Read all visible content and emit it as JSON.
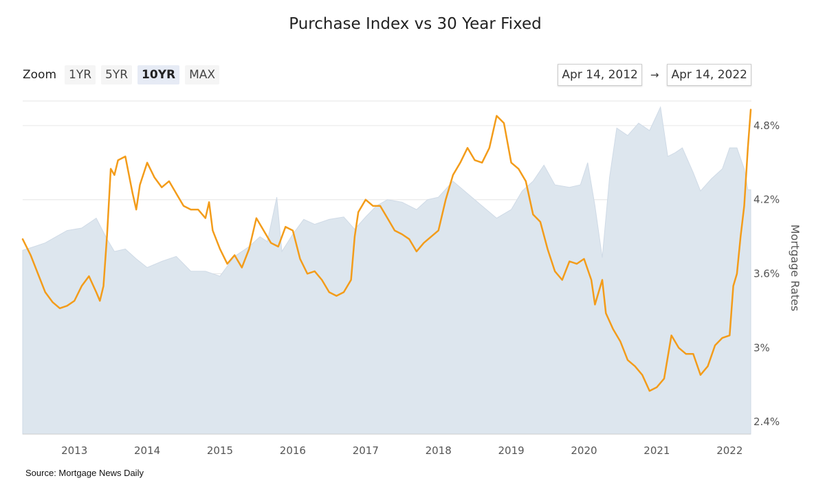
{
  "chart_data": {
    "type": "line",
    "title": "Purchase Index vs 30 Year Fixed",
    "ylabel": "Mortgage Rates",
    "xlabel": "",
    "x_range": [
      2012.29,
      2022.29
    ],
    "ylim": [
      2.3,
      5.0
    ],
    "y_ticks": [
      {
        "value": 2.4,
        "label": "2.4%"
      },
      {
        "value": 3.0,
        "label": "3%"
      },
      {
        "value": 3.6,
        "label": "3.6%"
      },
      {
        "value": 4.2,
        "label": "4.2%"
      },
      {
        "value": 4.8,
        "label": "4.8%"
      }
    ],
    "x_ticks": [
      {
        "value": 2013,
        "label": "2013"
      },
      {
        "value": 2014,
        "label": "2014"
      },
      {
        "value": 2015,
        "label": "2015"
      },
      {
        "value": 2016,
        "label": "2016"
      },
      {
        "value": 2017,
        "label": "2017"
      },
      {
        "value": 2018,
        "label": "2018"
      },
      {
        "value": 2019,
        "label": "2019"
      },
      {
        "value": 2020,
        "label": "2020"
      },
      {
        "value": 2021,
        "label": "2021"
      },
      {
        "value": 2022,
        "label": "2022"
      }
    ],
    "series": [
      {
        "name": "Purchase Index",
        "type": "area",
        "color": "#dde6ee",
        "points": [
          [
            2012.29,
            3.79
          ],
          [
            2012.45,
            3.82
          ],
          [
            2012.6,
            3.85
          ],
          [
            2012.75,
            3.9
          ],
          [
            2012.9,
            3.95
          ],
          [
            2013.1,
            3.97
          ],
          [
            2013.3,
            4.05
          ],
          [
            2013.45,
            3.88
          ],
          [
            2013.55,
            3.78
          ],
          [
            2013.7,
            3.8
          ],
          [
            2013.85,
            3.72
          ],
          [
            2014.0,
            3.65
          ],
          [
            2014.2,
            3.7
          ],
          [
            2014.4,
            3.74
          ],
          [
            2014.6,
            3.62
          ],
          [
            2014.8,
            3.62
          ],
          [
            2015.0,
            3.58
          ],
          [
            2015.2,
            3.74
          ],
          [
            2015.4,
            3.82
          ],
          [
            2015.55,
            3.9
          ],
          [
            2015.65,
            3.86
          ],
          [
            2015.78,
            4.22
          ],
          [
            2015.85,
            3.78
          ],
          [
            2016.0,
            3.92
          ],
          [
            2016.15,
            4.04
          ],
          [
            2016.3,
            4.0
          ],
          [
            2016.5,
            4.04
          ],
          [
            2016.7,
            4.06
          ],
          [
            2016.85,
            3.96
          ],
          [
            2017.0,
            4.06
          ],
          [
            2017.15,
            4.15
          ],
          [
            2017.3,
            4.2
          ],
          [
            2017.5,
            4.18
          ],
          [
            2017.7,
            4.12
          ],
          [
            2017.85,
            4.2
          ],
          [
            2018.0,
            4.22
          ],
          [
            2018.2,
            4.35
          ],
          [
            2018.4,
            4.25
          ],
          [
            2018.6,
            4.15
          ],
          [
            2018.8,
            4.05
          ],
          [
            2019.0,
            4.12
          ],
          [
            2019.15,
            4.27
          ],
          [
            2019.3,
            4.35
          ],
          [
            2019.45,
            4.48
          ],
          [
            2019.6,
            4.32
          ],
          [
            2019.8,
            4.3
          ],
          [
            2019.95,
            4.32
          ],
          [
            2020.05,
            4.5
          ],
          [
            2020.15,
            4.15
          ],
          [
            2020.25,
            3.73
          ],
          [
            2020.35,
            4.38
          ],
          [
            2020.45,
            4.78
          ],
          [
            2020.6,
            4.72
          ],
          [
            2020.75,
            4.82
          ],
          [
            2020.9,
            4.76
          ],
          [
            2021.05,
            4.95
          ],
          [
            2021.15,
            4.55
          ],
          [
            2021.25,
            4.58
          ],
          [
            2021.35,
            4.62
          ],
          [
            2021.5,
            4.42
          ],
          [
            2021.6,
            4.27
          ],
          [
            2021.75,
            4.37
          ],
          [
            2021.9,
            4.45
          ],
          [
            2022.0,
            4.62
          ],
          [
            2022.1,
            4.62
          ],
          [
            2022.2,
            4.45
          ],
          [
            2022.25,
            4.28
          ],
          [
            2022.29,
            4.28
          ]
        ]
      },
      {
        "name": "30 Year Fixed",
        "type": "line",
        "color": "#f39c1a",
        "points": [
          [
            2012.29,
            3.88
          ],
          [
            2012.4,
            3.75
          ],
          [
            2012.5,
            3.6
          ],
          [
            2012.6,
            3.45
          ],
          [
            2012.7,
            3.37
          ],
          [
            2012.8,
            3.32
          ],
          [
            2012.9,
            3.34
          ],
          [
            2013.0,
            3.38
          ],
          [
            2013.1,
            3.5
          ],
          [
            2013.2,
            3.58
          ],
          [
            2013.3,
            3.45
          ],
          [
            2013.35,
            3.38
          ],
          [
            2013.4,
            3.5
          ],
          [
            2013.45,
            3.92
          ],
          [
            2013.5,
            4.45
          ],
          [
            2013.55,
            4.4
          ],
          [
            2013.6,
            4.52
          ],
          [
            2013.7,
            4.55
          ],
          [
            2013.8,
            4.25
          ],
          [
            2013.85,
            4.12
          ],
          [
            2013.9,
            4.32
          ],
          [
            2014.0,
            4.5
          ],
          [
            2014.1,
            4.38
          ],
          [
            2014.2,
            4.3
          ],
          [
            2014.3,
            4.35
          ],
          [
            2014.4,
            4.25
          ],
          [
            2014.5,
            4.15
          ],
          [
            2014.6,
            4.12
          ],
          [
            2014.7,
            4.12
          ],
          [
            2014.8,
            4.05
          ],
          [
            2014.85,
            4.18
          ],
          [
            2014.9,
            3.95
          ],
          [
            2015.0,
            3.8
          ],
          [
            2015.1,
            3.68
          ],
          [
            2015.2,
            3.75
          ],
          [
            2015.3,
            3.65
          ],
          [
            2015.4,
            3.8
          ],
          [
            2015.5,
            4.05
          ],
          [
            2015.6,
            3.95
          ],
          [
            2015.7,
            3.85
          ],
          [
            2015.8,
            3.82
          ],
          [
            2015.9,
            3.98
          ],
          [
            2016.0,
            3.95
          ],
          [
            2016.1,
            3.72
          ],
          [
            2016.2,
            3.6
          ],
          [
            2016.3,
            3.62
          ],
          [
            2016.4,
            3.55
          ],
          [
            2016.5,
            3.45
          ],
          [
            2016.6,
            3.42
          ],
          [
            2016.7,
            3.45
          ],
          [
            2016.8,
            3.55
          ],
          [
            2016.85,
            3.9
          ],
          [
            2016.9,
            4.1
          ],
          [
            2017.0,
            4.2
          ],
          [
            2017.1,
            4.15
          ],
          [
            2017.2,
            4.15
          ],
          [
            2017.3,
            4.05
          ],
          [
            2017.4,
            3.95
          ],
          [
            2017.5,
            3.92
          ],
          [
            2017.6,
            3.88
          ],
          [
            2017.7,
            3.78
          ],
          [
            2017.8,
            3.85
          ],
          [
            2017.9,
            3.9
          ],
          [
            2018.0,
            3.95
          ],
          [
            2018.1,
            4.2
          ],
          [
            2018.2,
            4.4
          ],
          [
            2018.3,
            4.5
          ],
          [
            2018.4,
            4.62
          ],
          [
            2018.5,
            4.52
          ],
          [
            2018.6,
            4.5
          ],
          [
            2018.7,
            4.62
          ],
          [
            2018.8,
            4.88
          ],
          [
            2018.9,
            4.82
          ],
          [
            2019.0,
            4.5
          ],
          [
            2019.1,
            4.45
          ],
          [
            2019.2,
            4.35
          ],
          [
            2019.3,
            4.08
          ],
          [
            2019.4,
            4.02
          ],
          [
            2019.5,
            3.8
          ],
          [
            2019.6,
            3.62
          ],
          [
            2019.7,
            3.55
          ],
          [
            2019.8,
            3.7
          ],
          [
            2019.9,
            3.68
          ],
          [
            2020.0,
            3.72
          ],
          [
            2020.1,
            3.55
          ],
          [
            2020.15,
            3.35
          ],
          [
            2020.25,
            3.55
          ],
          [
            2020.3,
            3.28
          ],
          [
            2020.4,
            3.15
          ],
          [
            2020.5,
            3.05
          ],
          [
            2020.6,
            2.9
          ],
          [
            2020.7,
            2.85
          ],
          [
            2020.8,
            2.78
          ],
          [
            2020.9,
            2.65
          ],
          [
            2021.0,
            2.68
          ],
          [
            2021.1,
            2.75
          ],
          [
            2021.2,
            3.1
          ],
          [
            2021.3,
            3.0
          ],
          [
            2021.4,
            2.95
          ],
          [
            2021.5,
            2.95
          ],
          [
            2021.6,
            2.78
          ],
          [
            2021.7,
            2.85
          ],
          [
            2021.8,
            3.02
          ],
          [
            2021.9,
            3.08
          ],
          [
            2022.0,
            3.1
          ],
          [
            2022.05,
            3.5
          ],
          [
            2022.1,
            3.6
          ],
          [
            2022.15,
            3.9
          ],
          [
            2022.2,
            4.15
          ],
          [
            2022.25,
            4.62
          ],
          [
            2022.29,
            4.93
          ]
        ]
      }
    ]
  },
  "toolbar": {
    "zoom_label": "Zoom",
    "zoom_options": [
      "1YR",
      "5YR",
      "10YR",
      "MAX"
    ],
    "selected": "10YR",
    "range_from": "Apr 14, 2012",
    "range_arrow": "→",
    "range_to": "Apr 14, 2022"
  },
  "footer": {
    "source": "Source: Mortgage News Daily"
  }
}
